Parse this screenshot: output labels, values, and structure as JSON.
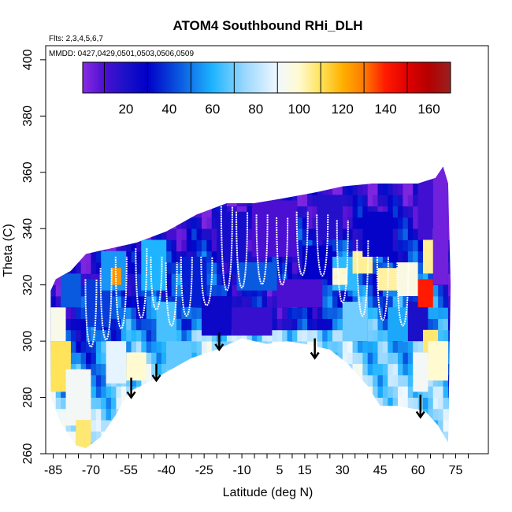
{
  "chart_data": {
    "type": "heatmap",
    "title": "ATOM4 Southbound RHi_DLH",
    "subtitle_flights": "Flts: 2,3,4,5,6,7",
    "subtitle_dates": "MMDD: 0427,0429,0501,0503,0506,0509",
    "xlabel": "Latitude (deg N)",
    "ylabel": "Theta (C)",
    "xlim": [
      -88,
      88
    ],
    "ylim": [
      260,
      405
    ],
    "x_ticks": [
      -85,
      -70,
      -55,
      -40,
      -25,
      -10,
      5,
      15,
      30,
      45,
      60,
      75
    ],
    "x_tick_labels": [
      "-85",
      "-70",
      "-55",
      "-40",
      "-25",
      "-10",
      "5",
      "15",
      "30",
      "45",
      "60",
      "75"
    ],
    "y_ticks": [
      260,
      280,
      300,
      320,
      340,
      360,
      380,
      400
    ],
    "y_tick_labels": [
      "260",
      "280",
      "300",
      "320",
      "340",
      "360",
      "380",
      "400"
    ],
    "colorbar": {
      "min": 0,
      "max": 170,
      "ticks": [
        20,
        40,
        60,
        80,
        100,
        120,
        140,
        160
      ],
      "tick_labels": [
        "20",
        "40",
        "60",
        "80",
        "100",
        "120",
        "140",
        "160"
      ],
      "segment_edges": [
        10,
        30,
        50,
        70,
        90,
        110,
        130,
        150
      ],
      "color_stops": [
        {
          "v": 0,
          "c": "#8a2be2"
        },
        {
          "v": 10,
          "c": "#4b0fd2"
        },
        {
          "v": 20,
          "c": "#1a10c8"
        },
        {
          "v": 30,
          "c": "#0000c8"
        },
        {
          "v": 45,
          "c": "#0a5ae0"
        },
        {
          "v": 60,
          "c": "#1eb4ff"
        },
        {
          "v": 75,
          "c": "#9ad8ff"
        },
        {
          "v": 90,
          "c": "#f0f8ff"
        },
        {
          "v": 100,
          "c": "#fffad0"
        },
        {
          "v": 110,
          "c": "#ffe35a"
        },
        {
          "v": 120,
          "c": "#ffb000"
        },
        {
          "v": 130,
          "c": "#ff7a00"
        },
        {
          "v": 140,
          "c": "#ff1a00"
        },
        {
          "v": 150,
          "c": "#e00000"
        },
        {
          "v": 160,
          "c": "#b40000"
        },
        {
          "v": 170,
          "c": "#9a2020"
        }
      ]
    },
    "domain_top_theta": [
      {
        "lat": -86,
        "theta": 318
      },
      {
        "lat": -84,
        "theta": 322
      },
      {
        "lat": -78,
        "theta": 325
      },
      {
        "lat": -72,
        "theta": 331
      },
      {
        "lat": -62,
        "theta": 333
      },
      {
        "lat": -52,
        "theta": 335
      },
      {
        "lat": -40,
        "theta": 339
      },
      {
        "lat": -28,
        "theta": 345
      },
      {
        "lat": -16,
        "theta": 349
      },
      {
        "lat": -5,
        "theta": 349
      },
      {
        "lat": 8,
        "theta": 351
      },
      {
        "lat": 20,
        "theta": 353
      },
      {
        "lat": 30,
        "theta": 355
      },
      {
        "lat": 42,
        "theta": 356
      },
      {
        "lat": 52,
        "theta": 356
      },
      {
        "lat": 60,
        "theta": 356
      },
      {
        "lat": 67,
        "theta": 358
      },
      {
        "lat": 70,
        "theta": 362
      },
      {
        "lat": 72,
        "theta": 356
      },
      {
        "lat": 73,
        "theta": 320
      }
    ],
    "domain_bottom_theta": [
      {
        "lat": -86,
        "theta": 280
      },
      {
        "lat": -82,
        "theta": 271
      },
      {
        "lat": -76,
        "theta": 263
      },
      {
        "lat": -72,
        "theta": 262
      },
      {
        "lat": -66,
        "theta": 266
      },
      {
        "lat": -60,
        "theta": 274
      },
      {
        "lat": -55,
        "theta": 282
      },
      {
        "lat": -48,
        "theta": 285
      },
      {
        "lat": -40,
        "theta": 289
      },
      {
        "lat": -30,
        "theta": 294
      },
      {
        "lat": -20,
        "theta": 297
      },
      {
        "lat": -10,
        "theta": 301
      },
      {
        "lat": -5,
        "theta": 300
      },
      {
        "lat": 0,
        "theta": 299
      },
      {
        "lat": 8,
        "theta": 300
      },
      {
        "lat": 15,
        "theta": 299
      },
      {
        "lat": 25,
        "theta": 297
      },
      {
        "lat": 32,
        "theta": 292
      },
      {
        "lat": 40,
        "theta": 284
      },
      {
        "lat": 45,
        "theta": 277
      },
      {
        "lat": 52,
        "theta": 277
      },
      {
        "lat": 58,
        "theta": 276
      },
      {
        "lat": 63,
        "theta": 275
      },
      {
        "lat": 68,
        "theta": 270
      },
      {
        "lat": 72,
        "theta": 264
      }
    ],
    "rhi_regions": [
      {
        "lat0": -86,
        "lat1": -78,
        "th0": 282,
        "th1": 300,
        "rhi": 110
      },
      {
        "lat0": -86,
        "lat1": -80,
        "th0": 300,
        "th1": 312,
        "rhi": 95
      },
      {
        "lat0": -80,
        "lat1": -70,
        "th0": 270,
        "th1": 290,
        "rhi": 92
      },
      {
        "lat0": -76,
        "lat1": -70,
        "th0": 262,
        "th1": 272,
        "rhi": 108
      },
      {
        "lat0": -82,
        "lat1": -74,
        "th0": 312,
        "th1": 324,
        "rhi": 45
      },
      {
        "lat0": -72,
        "lat1": -62,
        "th0": 305,
        "th1": 322,
        "rhi": 40
      },
      {
        "lat0": -66,
        "lat1": -56,
        "th0": 318,
        "th1": 332,
        "rhi": 55
      },
      {
        "lat0": -62,
        "lat1": -58,
        "th0": 320,
        "th1": 326,
        "rhi": 125
      },
      {
        "lat0": -64,
        "lat1": -56,
        "th0": 285,
        "th1": 300,
        "rhi": 88
      },
      {
        "lat0": -56,
        "lat1": -48,
        "th0": 286,
        "th1": 296,
        "rhi": 100
      },
      {
        "lat0": -50,
        "lat1": -40,
        "th0": 318,
        "th1": 336,
        "rhi": 60
      },
      {
        "lat0": -44,
        "lat1": -36,
        "th0": 300,
        "th1": 314,
        "rhi": 65
      },
      {
        "lat0": -40,
        "lat1": -30,
        "th0": 290,
        "th1": 300,
        "rhi": 68
      },
      {
        "lat0": -34,
        "lat1": -24,
        "th0": 312,
        "th1": 330,
        "rhi": 35
      },
      {
        "lat0": -26,
        "lat1": -14,
        "th0": 302,
        "th1": 316,
        "rhi": 25
      },
      {
        "lat0": -14,
        "lat1": 2,
        "th0": 302,
        "th1": 312,
        "rhi": 14
      },
      {
        "lat0": -12,
        "lat1": 4,
        "th0": 318,
        "th1": 328,
        "rhi": 45
      },
      {
        "lat0": -20,
        "lat1": -8,
        "th0": 328,
        "th1": 346,
        "rhi": 22
      },
      {
        "lat0": -6,
        "lat1": 12,
        "th0": 330,
        "th1": 350,
        "rhi": 10
      },
      {
        "lat0": 4,
        "lat1": 22,
        "th0": 312,
        "th1": 322,
        "rhi": 10
      },
      {
        "lat0": 14,
        "lat1": 26,
        "th0": 322,
        "th1": 334,
        "rhi": 30
      },
      {
        "lat0": 20,
        "lat1": 30,
        "th0": 336,
        "th1": 352,
        "rhi": 18
      },
      {
        "lat0": 26,
        "lat1": 36,
        "th0": 318,
        "th1": 330,
        "rhi": 62
      },
      {
        "lat0": 26,
        "lat1": 32,
        "th0": 320,
        "th1": 326,
        "rhi": 100
      },
      {
        "lat0": 30,
        "lat1": 40,
        "th0": 300,
        "th1": 314,
        "rhi": 70
      },
      {
        "lat0": 34,
        "lat1": 42,
        "th0": 324,
        "th1": 332,
        "rhi": 105
      },
      {
        "lat0": 38,
        "lat1": 50,
        "th0": 330,
        "th1": 346,
        "rhi": 28
      },
      {
        "lat0": 44,
        "lat1": 52,
        "th0": 318,
        "th1": 326,
        "rhi": 104
      },
      {
        "lat0": 48,
        "lat1": 56,
        "th0": 300,
        "th1": 312,
        "rhi": 58
      },
      {
        "lat0": 52,
        "lat1": 60,
        "th0": 316,
        "th1": 328,
        "rhi": 96
      },
      {
        "lat0": 56,
        "lat1": 64,
        "th0": 300,
        "th1": 314,
        "rhi": 20
      },
      {
        "lat0": 62,
        "lat1": 68,
        "th0": 296,
        "th1": 304,
        "rhi": 108
      },
      {
        "lat0": 58,
        "lat1": 64,
        "th0": 282,
        "th1": 296,
        "rhi": 92
      },
      {
        "lat0": 64,
        "lat1": 72,
        "th0": 286,
        "th1": 300,
        "rhi": 100
      },
      {
        "lat0": 60,
        "lat1": 66,
        "th0": 312,
        "th1": 322,
        "rhi": 140
      },
      {
        "lat0": 62,
        "lat1": 68,
        "th0": 324,
        "th1": 340,
        "rhi": 105
      },
      {
        "lat0": 66,
        "lat1": 72,
        "th0": 320,
        "th1": 362,
        "rhi": 4
      },
      {
        "lat0": 60,
        "lat1": 66,
        "th0": 336,
        "th1": 358,
        "rhi": 12
      }
    ],
    "flight_profiles": [
      {
        "lat": -70,
        "top": 322,
        "bottom": 290
      },
      {
        "lat": -64,
        "top": 326,
        "bottom": 292
      },
      {
        "lat": -58,
        "top": 330,
        "bottom": 296
      },
      {
        "lat": -50,
        "top": 333,
        "bottom": 300
      },
      {
        "lat": -44,
        "top": 330,
        "bottom": 305
      },
      {
        "lat": -38,
        "top": 328,
        "bottom": 298
      },
      {
        "lat": -32,
        "top": 330,
        "bottom": 302
      },
      {
        "lat": -24,
        "top": 330,
        "bottom": 307
      },
      {
        "lat": -16,
        "top": 348,
        "bottom": 308
      },
      {
        "lat": -10,
        "top": 346,
        "bottom": 310
      },
      {
        "lat": -2,
        "top": 345,
        "bottom": 312
      },
      {
        "lat": 6,
        "top": 344,
        "bottom": 312
      },
      {
        "lat": 14,
        "top": 346,
        "bottom": 316
      },
      {
        "lat": 22,
        "top": 345,
        "bottom": 316
      },
      {
        "lat": 30,
        "top": 343,
        "bottom": 304
      },
      {
        "lat": 38,
        "top": 336,
        "bottom": 300
      },
      {
        "lat": 46,
        "top": 330,
        "bottom": 300
      },
      {
        "lat": 54,
        "top": 328,
        "bottom": 298
      }
    ],
    "arrows": [
      {
        "lat": -54,
        "theta_top": 287,
        "theta_bottom": 280
      },
      {
        "lat": -44,
        "theta_top": 292,
        "theta_bottom": 286
      },
      {
        "lat": -19,
        "theta_top": 303,
        "theta_bottom": 297
      },
      {
        "lat": 19,
        "theta_top": 301,
        "theta_bottom": 294
      },
      {
        "lat": 61,
        "theta_top": 281,
        "theta_bottom": 273
      }
    ]
  }
}
